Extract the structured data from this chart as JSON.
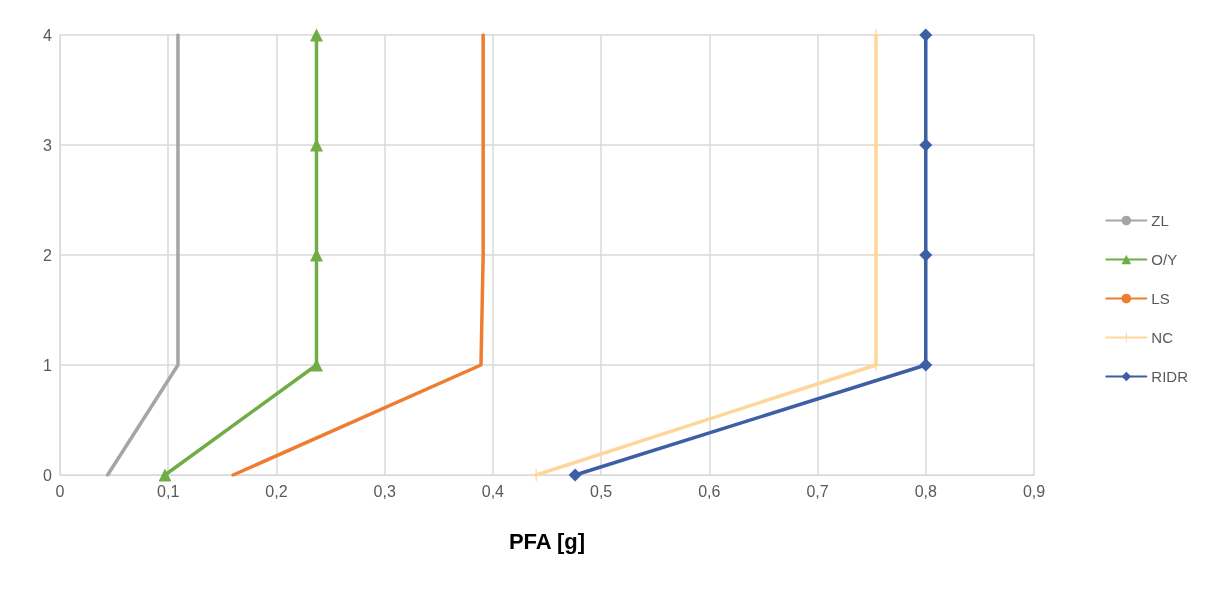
{
  "chart_data": {
    "type": "line",
    "xlabel": "PFA [g]",
    "xlim": [
      0,
      0.9
    ],
    "xticks": [
      0,
      {
        "value": 0.1,
        "label": "0,1"
      },
      {
        "value": 0.2,
        "label": "0,2"
      },
      {
        "value": 0.3,
        "label": "0,3"
      },
      {
        "value": 0.4,
        "label": "0,4"
      },
      {
        "value": 0.5,
        "label": "0,5"
      },
      {
        "value": 0.6,
        "label": "0,6"
      },
      {
        "value": 0.7,
        "label": "0,7"
      },
      {
        "value": 0.8,
        "label": "0,8"
      },
      {
        "value": 0.9,
        "label": "0,9"
      }
    ],
    "ylim": [
      0,
      4
    ],
    "yticks": [
      0,
      1,
      2,
      3,
      4
    ],
    "grid": true,
    "legend": "right",
    "series": [
      {
        "name": "ZL",
        "color": "#a5a5a5",
        "marker": "none",
        "x": [
          0.044,
          0.109,
          0.109,
          0.109,
          0.109
        ],
        "values": [
          0,
          1,
          2,
          3,
          4
        ]
      },
      {
        "name": "O/Y",
        "color": "#70ad47",
        "marker": "triangle",
        "x": [
          0.097,
          0.237,
          0.237,
          0.237,
          0.237
        ],
        "values": [
          0,
          1,
          2,
          3,
          4
        ]
      },
      {
        "name": "LS",
        "color": "#ed7d31",
        "marker": "none",
        "x": [
          0.16,
          0.389,
          0.391,
          0.391,
          0.391
        ],
        "values": [
          0,
          1,
          2,
          3,
          4
        ]
      },
      {
        "name": "NC",
        "color": "#ffd699",
        "marker": "cross",
        "x": [
          0.44,
          0.754,
          0.754,
          0.754,
          0.754
        ],
        "values": [
          0,
          1,
          2,
          3,
          4
        ]
      },
      {
        "name": "RIDR",
        "color": "#3c5fa6",
        "marker": "diamond",
        "x": [
          0.476,
          0.8,
          0.8,
          0.8,
          0.8
        ],
        "values": [
          0,
          1,
          2,
          3,
          4
        ]
      }
    ]
  }
}
